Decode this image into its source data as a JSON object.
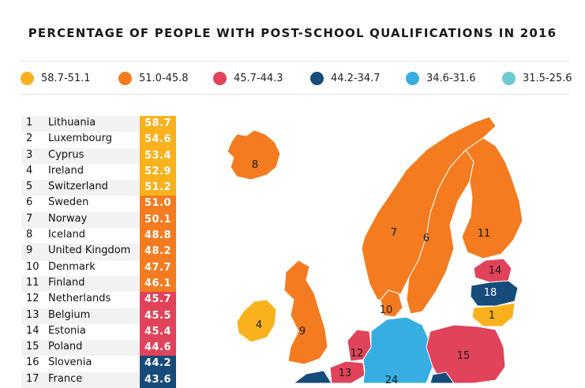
{
  "title": "PERCENTAGE OF PEOPLE WITH POST-SCHOOL QUALIFICATIONS IN 2016",
  "legend": [
    {
      "label": "58.7-51.1",
      "color": "#f9b21d"
    },
    {
      "label": "51.0-45.8",
      "color": "#f47b20"
    },
    {
      "label": "45.7-44.3",
      "color": "#e0435a"
    },
    {
      "label": "44.2-34.7",
      "color": "#164b7a"
    },
    {
      "label": "34.6-31.6",
      "color": "#37aee2"
    },
    {
      "label": "31.5-25.6",
      "color": "#6ccbd3"
    }
  ],
  "ranking": [
    {
      "rank": "1",
      "country": "Lithuania",
      "value": "58.7",
      "color": "#f9b21d"
    },
    {
      "rank": "2",
      "country": "Luxembourg",
      "value": "54.6",
      "color": "#f9b21d"
    },
    {
      "rank": "3",
      "country": "Cyprus",
      "value": "53.4",
      "color": "#f9b21d"
    },
    {
      "rank": "4",
      "country": "Ireland",
      "value": "52.9",
      "color": "#f9b21d"
    },
    {
      "rank": "5",
      "country": "Switzerland",
      "value": "51.2",
      "color": "#f9b21d"
    },
    {
      "rank": "6",
      "country": "Sweden",
      "value": "51.0",
      "color": "#f47b20"
    },
    {
      "rank": "7",
      "country": "Norway",
      "value": "50.1",
      "color": "#f47b20"
    },
    {
      "rank": "8",
      "country": "Iceland",
      "value": "48.8",
      "color": "#f47b20"
    },
    {
      "rank": "9",
      "country": "United Kingdom",
      "value": "48.2",
      "color": "#f47b20"
    },
    {
      "rank": "10",
      "country": "Denmark",
      "value": "47.7",
      "color": "#f47b20"
    },
    {
      "rank": "11",
      "country": "Finland",
      "value": "46.1",
      "color": "#f47b20"
    },
    {
      "rank": "12",
      "country": "Netherlands",
      "value": "45.7",
      "color": "#e0435a"
    },
    {
      "rank": "13",
      "country": "Belgium",
      "value": "45.5",
      "color": "#e0435a"
    },
    {
      "rank": "14",
      "country": "Estonia",
      "value": "45.4",
      "color": "#e0435a"
    },
    {
      "rank": "15",
      "country": "Poland",
      "value": "44.6",
      "color": "#e0435a"
    },
    {
      "rank": "16",
      "country": "Slovenia",
      "value": "44.2",
      "color": "#164b7a"
    },
    {
      "rank": "17",
      "country": "France",
      "value": "43.6",
      "color": "#164b7a"
    }
  ],
  "map_labels": {
    "iceland": "8",
    "norway": "7",
    "sweden": "6",
    "finland": "11",
    "estonia": "14",
    "latvia": "18",
    "lithuania": "1",
    "denmark": "10",
    "ireland": "4",
    "uk": "9",
    "netherlands": "12",
    "belgium": "13",
    "poland": "15",
    "germany": "24"
  },
  "map_colors": {
    "orange": "#f47b20",
    "yellow": "#f9b21d",
    "red": "#e0435a",
    "navy": "#164b7a",
    "blue": "#37aee2",
    "teal": "#6ccbd3"
  }
}
